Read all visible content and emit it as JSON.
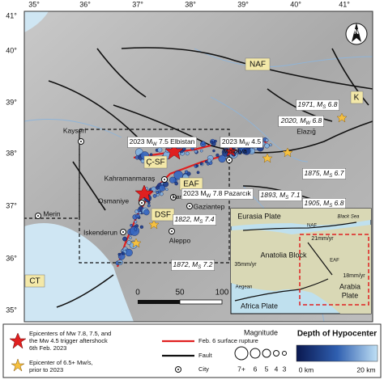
{
  "axes": {
    "lon": [
      "35°",
      "36°",
      "37°",
      "38°",
      "39°",
      "40°",
      "41°"
    ],
    "lat": [
      "41°",
      "40°",
      "39°",
      "38°",
      "37°",
      "36°",
      "35°"
    ]
  },
  "map": {
    "zones": {
      "naf": "NAF",
      "k": "K",
      "csf": "Ç-SF",
      "eaf": "EAF",
      "dsf": "DSF",
      "ct": "CT"
    },
    "north": "N",
    "cities": {
      "kayseri": "Kayseri",
      "malatya": "Malatya",
      "elazig": "Elazığ",
      "kahramanmaras": "Kahramanmaraş",
      "narli": "Narlı",
      "osmaniye": "Osmaniye",
      "gaziantep": "Gaziantep",
      "merin": "Merin",
      "iskenderun": "Iskenderun",
      "aleppo": "Aleppo"
    },
    "events": {
      "e1971": {
        "pre": "1971, M",
        "sub": "S",
        "post": " 6.8"
      },
      "e2020": {
        "pre": "2020, M",
        "sub": "W",
        "post": " 6.8"
      },
      "elbistan": {
        "pre": "2023 M",
        "sub": "W",
        "post": " 7.5 Elbistan"
      },
      "after": {
        "pre": "2023 M",
        "sub": "W",
        "post": " 4.5"
      },
      "e1875": {
        "pre": "1875, M",
        "sub": "S",
        "post": " 6.7"
      },
      "e1893": {
        "pre": "1893, M",
        "sub": "S",
        "post": " 7.1"
      },
      "e1905": {
        "pre": "1905, M",
        "sub": "S",
        "post": " 6.8"
      },
      "pazarcik": {
        "pre": "2023 M",
        "sub": "W",
        "post": " 7.8 Pazarcık"
      },
      "e1822": {
        "pre": "1822, M",
        "sub": "S",
        "post": " 7.4"
      },
      "e1872": {
        "pre": "1872, M",
        "sub": "S",
        "post": " 7.2"
      }
    },
    "scale": [
      "0",
      "50",
      "100 km"
    ]
  },
  "inset": {
    "eurasia": "Eurasia Plate",
    "naf": "NAF",
    "black_sea": "Black Sea",
    "rate1": "21mm/yr",
    "anatolia": "Anatolia Block",
    "rate2": "35mm/yr",
    "eaf": "EAF",
    "rate3": "18mm/yr",
    "arabia": [
      "Arabia",
      "Plate"
    ],
    "aegean": "Aegean",
    "africa": "Africa Plate"
  },
  "legend": {
    "star_red": [
      "Epicenters of Mw 7.8, 7.5, and",
      "the Mw 4.5 trigger aftershock",
      "6th Feb. 2023"
    ],
    "star_yellow": [
      "Epicenter of 6.5+ Mw/s,",
      "prior to 2023"
    ],
    "rupture": "Feb. 6 surface rupture",
    "fault": "Fault",
    "city": "City",
    "magnitude": "Magnitude",
    "mags": [
      "7+",
      "6",
      "5",
      "4",
      "3"
    ],
    "depth": "Depth of Hypocenter",
    "depth_min": "0 km",
    "depth_max": "20 km"
  }
}
